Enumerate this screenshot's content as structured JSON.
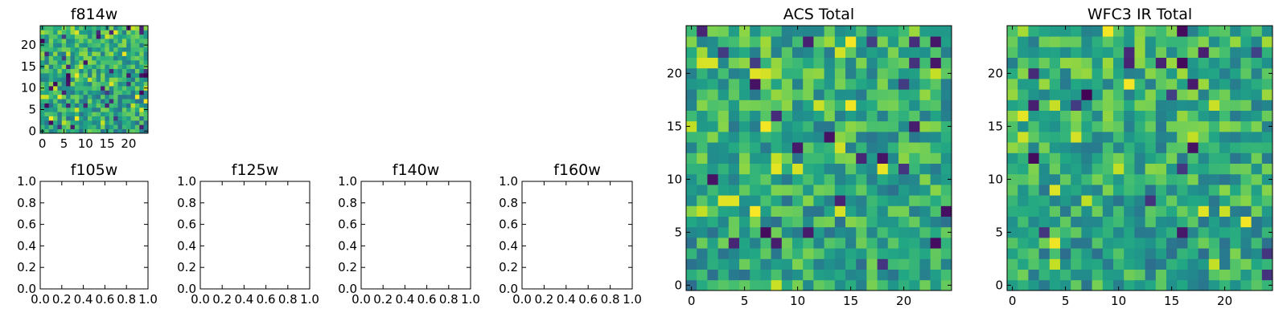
{
  "chart_data": [
    {
      "type": "heatmap",
      "title": "f814w",
      "colormap": "viridis",
      "grid": false,
      "xlim": [
        -0.5,
        24.5
      ],
      "ylim": [
        -0.5,
        24.5
      ],
      "xticks": [
        "0",
        "5",
        "10",
        "15",
        "20"
      ],
      "yticks": [
        "0",
        "5",
        "10",
        "15",
        "20"
      ],
      "cells": 25,
      "seed": 814
    },
    {
      "type": "empty",
      "title": "f105w",
      "xlim": [
        0,
        1
      ],
      "ylim": [
        0,
        1
      ],
      "xticks": [
        "0.0",
        "0.2",
        "0.4",
        "0.6",
        "0.8",
        "1.0"
      ],
      "yticks": [
        "0.0",
        "0.2",
        "0.4",
        "0.6",
        "0.8",
        "1.0"
      ]
    },
    {
      "type": "empty",
      "title": "f125w",
      "xlim": [
        0,
        1
      ],
      "ylim": [
        0,
        1
      ],
      "xticks": [
        "0.0",
        "0.2",
        "0.4",
        "0.6",
        "0.8",
        "1.0"
      ],
      "yticks": [
        "0.0",
        "0.2",
        "0.4",
        "0.6",
        "0.8",
        "1.0"
      ]
    },
    {
      "type": "empty",
      "title": "f140w",
      "xlim": [
        0,
        1
      ],
      "ylim": [
        0,
        1
      ],
      "xticks": [
        "0.0",
        "0.2",
        "0.4",
        "0.6",
        "0.8",
        "1.0"
      ],
      "yticks": [
        "0.0",
        "0.2",
        "0.4",
        "0.6",
        "0.8",
        "1.0"
      ]
    },
    {
      "type": "empty",
      "title": "f160w",
      "xlim": [
        0,
        1
      ],
      "ylim": [
        0,
        1
      ],
      "xticks": [
        "0.0",
        "0.2",
        "0.4",
        "0.6",
        "0.8",
        "1.0"
      ],
      "yticks": [
        "0.0",
        "0.2",
        "0.4",
        "0.6",
        "0.8",
        "1.0"
      ]
    },
    {
      "type": "heatmap",
      "title": "ACS Total",
      "colormap": "viridis",
      "grid": false,
      "xlim": [
        -0.5,
        24.5
      ],
      "ylim": [
        -0.5,
        24.5
      ],
      "xticks": [
        "0",
        "5",
        "10",
        "15",
        "20"
      ],
      "yticks": [
        "0",
        "5",
        "10",
        "15",
        "20"
      ],
      "cells": 25,
      "seed": 2024
    },
    {
      "type": "heatmap",
      "title": "WFC3 IR Total",
      "colormap": "viridis",
      "grid": false,
      "xlim": [
        -0.5,
        24.5
      ],
      "ylim": [
        -0.5,
        24.5
      ],
      "xticks": [
        "0",
        "5",
        "10",
        "15",
        "20"
      ],
      "yticks": [
        "0",
        "5",
        "10",
        "15",
        "20"
      ],
      "cells": 25,
      "seed": 3160
    }
  ]
}
